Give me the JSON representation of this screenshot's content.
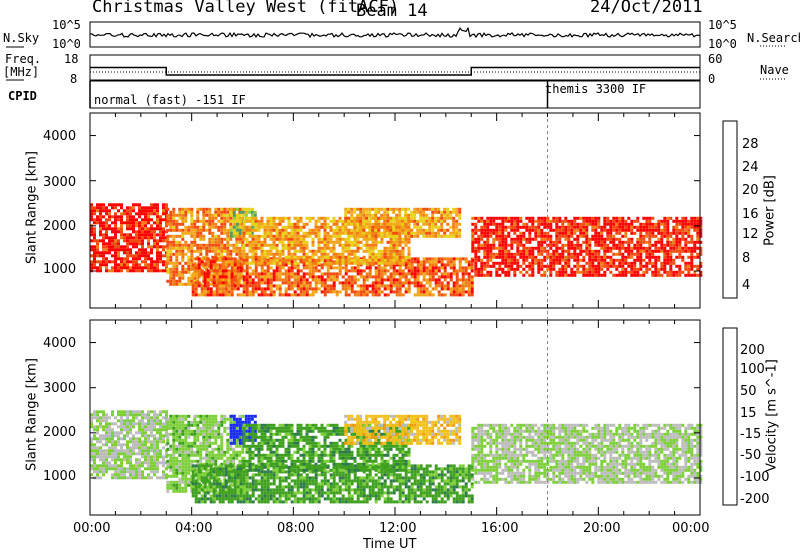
{
  "header": {
    "title": "Christmas Valley West (fitACF)",
    "beam": "Beam 14",
    "date": "24/Oct/2011"
  },
  "top_panel": {
    "left_label": "N.Sky",
    "right_label": "N.Search",
    "left_ticks": [
      "10^5",
      "10^0"
    ],
    "right_ticks": [
      "10^5",
      "10^0"
    ]
  },
  "freq_panel": {
    "left_label_1": "Freq.",
    "left_label_2": "[MHz]",
    "right_label": "Nave",
    "left_ticks": [
      "18",
      "8"
    ],
    "right_ticks": [
      "60",
      "0"
    ]
  },
  "cpid": {
    "label": "CPID",
    "mode_1": "normal (fast) -151 IF",
    "mode_2": "themis 3300 IF"
  },
  "power_panel": {
    "ylabel": "Slant Range [km]",
    "yticks": [
      "1000",
      "2000",
      "3000",
      "4000"
    ],
    "colorbar_label": "Power [dB]",
    "colorbar_ticks": [
      "4",
      "8",
      "12",
      "16",
      "20",
      "24",
      "28"
    ],
    "colors": [
      "#1a1aff",
      "#2f55c8",
      "#3a7ea8",
      "#4e9a66",
      "#8ecf3a",
      "#e8d21a",
      "#f2a81a",
      "#f27d14",
      "#f24a10",
      "#ff0000"
    ]
  },
  "velocity_panel": {
    "ylabel": "Slant Range [km]",
    "yticks": [
      "1000",
      "2000",
      "3000",
      "4000"
    ],
    "colorbar_label": "Velocity [m s^-1]",
    "colorbar_ticks": [
      "200",
      "100",
      "50",
      "15",
      "-15",
      "-50",
      "-100",
      "-200"
    ],
    "colors": [
      "#1a2bff",
      "#2a55b8",
      "#2e7a4a",
      "#3fa020",
      "#7ed03a",
      "#bcbcbc",
      "#f2c01a",
      "#f29a10",
      "#f26a10",
      "#ff0000"
    ]
  },
  "x_axis": {
    "label": "Time UT",
    "ticks": [
      "00:00",
      "04:00",
      "08:00",
      "12:00",
      "16:00",
      "20:00",
      "00:00"
    ]
  },
  "chart_data": {
    "type": "heatmap",
    "title": "Christmas Valley West (fitACF)",
    "subtitle": "Beam 14",
    "date": "24/Oct/2011",
    "xlabel": "Time UT",
    "ylabel": "Slant Range [km]",
    "xlim": [
      "00:00",
      "24:00"
    ],
    "ylim": [
      180,
      4500
    ],
    "panels": [
      {
        "name": "Power",
        "colorbar_label": "Power [dB]",
        "clim": [
          0,
          30
        ]
      },
      {
        "name": "Velocity",
        "colorbar_label": "Velocity [m s^-1]",
        "clim": [
          -200,
          200
        ]
      }
    ],
    "frequency_steps": [
      {
        "start": "00:00",
        "end": "03:00",
        "value": 13
      },
      {
        "start": "03:00",
        "end": "15:00",
        "value": 10
      },
      {
        "start": "15:00",
        "end": "24:00",
        "value": 13
      }
    ],
    "cpid_segments": [
      {
        "start": "00:00",
        "end": "18:00",
        "label": "normal (fast) -151 IF"
      },
      {
        "start": "18:00",
        "end": "24:00",
        "label": "themis 3300 IF"
      }
    ],
    "scatter_regions": [
      {
        "start": "00:00",
        "end": "03:00",
        "range_min": 1000,
        "range_max": 2500,
        "power": 28,
        "velocity": 0
      },
      {
        "start": "03:00",
        "end": "06:00",
        "range_min": 700,
        "range_max": 2400,
        "power": 22,
        "velocity": -20
      },
      {
        "start": "04:00",
        "end": "15:00",
        "range_min": 500,
        "range_max": 1300,
        "power": 24,
        "velocity": -60
      },
      {
        "start": "05:30",
        "end": "06:30",
        "range_min": 1800,
        "range_max": 2400,
        "power": 14,
        "velocity": -200
      },
      {
        "start": "06:00",
        "end": "12:30",
        "range_min": 1200,
        "range_max": 2200,
        "power": 20,
        "velocity": -60
      },
      {
        "start": "10:00",
        "end": "14:30",
        "range_min": 1800,
        "range_max": 2400,
        "power": 20,
        "velocity": 60
      },
      {
        "start": "15:00",
        "end": "24:00",
        "range_min": 900,
        "range_max": 2200,
        "power": 28,
        "velocity": 0
      }
    ]
  }
}
